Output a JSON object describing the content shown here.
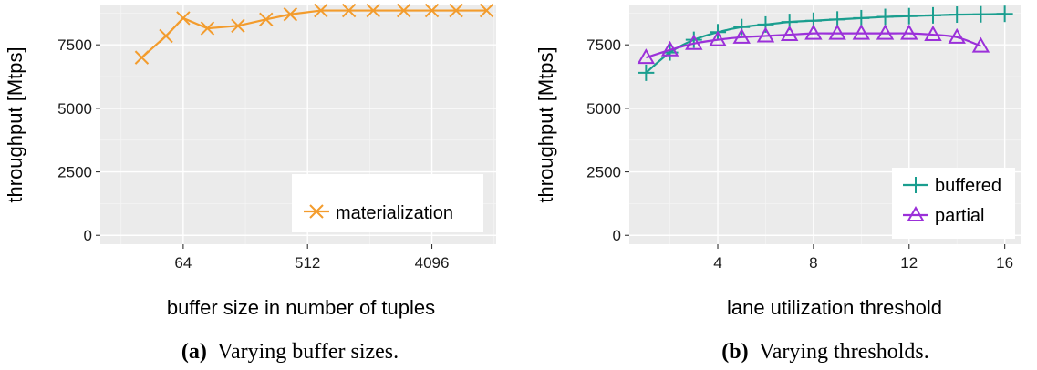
{
  "chart_data": [
    {
      "type": "line",
      "caption_label": "(a)",
      "caption": "Varying buffer sizes.",
      "xlabel": "buffer size in number of tuples",
      "ylabel": "throughput [Mtps]",
      "x_scale": "log2",
      "xlim": [
        16,
        12000
      ],
      "ylim": [
        -350,
        9050
      ],
      "x_ticks": [
        64,
        512,
        4096
      ],
      "y_ticks": [
        0,
        2500,
        5000,
        7500
      ],
      "grid": true,
      "legend_position": "bottom-right",
      "series": [
        {
          "name": "materialization",
          "color": "#f39c2d",
          "marker": "x",
          "x": [
            32,
            48,
            64,
            96,
            160,
            256,
            384,
            640,
            1024,
            1536,
            2560,
            4096,
            6144,
            10240
          ],
          "y": [
            7000,
            7850,
            8550,
            8150,
            8250,
            8500,
            8700,
            8850,
            8850,
            8850,
            8850,
            8850,
            8850,
            8850
          ]
        }
      ]
    },
    {
      "type": "line",
      "caption_label": "(b)",
      "caption": "Varying thresholds.",
      "xlabel": "lane utilization threshold",
      "ylabel": "throughput [Mtps]",
      "x_scale": "linear",
      "xlim": [
        0.3,
        16.7
      ],
      "ylim": [
        -350,
        9050
      ],
      "x_ticks": [
        4,
        8,
        12,
        16
      ],
      "y_ticks": [
        0,
        2500,
        5000,
        7500
      ],
      "grid": true,
      "legend_position": "bottom-right",
      "series": [
        {
          "name": "buffered",
          "color": "#1a9e8f",
          "marker": "plus",
          "x": [
            1,
            2,
            3,
            4,
            5,
            6,
            7,
            8,
            9,
            10,
            11,
            12,
            13,
            14,
            15,
            16
          ],
          "y": [
            6400,
            7200,
            7700,
            8000,
            8200,
            8300,
            8400,
            8450,
            8500,
            8550,
            8600,
            8630,
            8660,
            8690,
            8700,
            8720
          ]
        },
        {
          "name": "partial",
          "color": "#9b30d9",
          "marker": "triangle",
          "x": [
            1,
            2,
            3,
            4,
            5,
            6,
            7,
            8,
            9,
            10,
            11,
            12,
            13,
            14,
            15
          ],
          "y": [
            7000,
            7300,
            7550,
            7700,
            7800,
            7850,
            7900,
            7950,
            7950,
            7950,
            7950,
            7950,
            7900,
            7800,
            7450
          ]
        }
      ]
    }
  ]
}
